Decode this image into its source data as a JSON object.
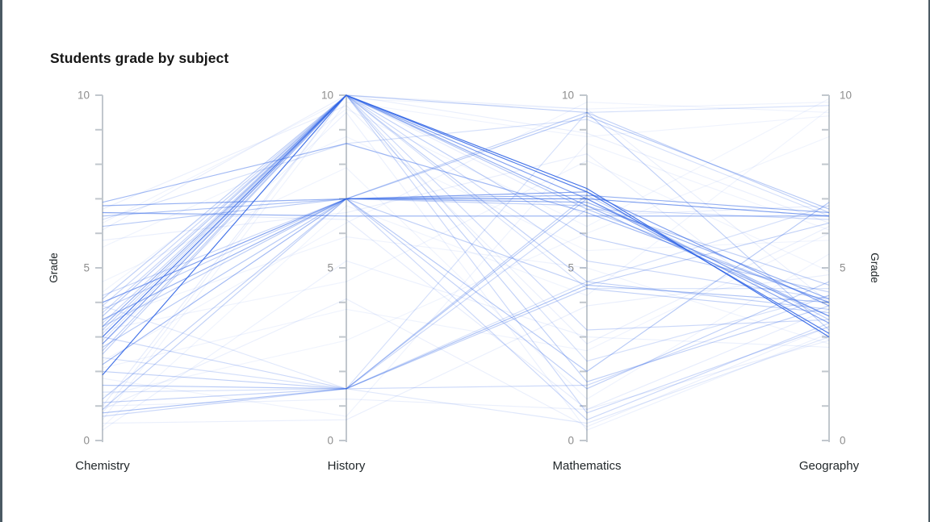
{
  "title": "Students grade by subject",
  "chart_data": {
    "type": "parallel_coordinates",
    "title": "Students grade by subject",
    "axes": [
      "Chemistry",
      "History",
      "Mathematics",
      "Geography"
    ],
    "value_axis_label": "Grade",
    "value_range": [
      0,
      10
    ],
    "labeled_ticks": [
      0,
      5,
      10
    ],
    "minor_tick_step": 1,
    "grid": false,
    "legend": "none",
    "colors": {
      "line": "#2e63e6",
      "axis": "#c1c7cd",
      "tick_label": "#8d8d8d",
      "dimension_label": "#21272a",
      "value_axis_label": "#21272a",
      "title": "#161616",
      "window_edge": "#4b5a63",
      "background": "#ffffff"
    },
    "students": [
      {
        "g": [
          3.0,
          10,
          7.2,
          3.1
        ],
        "o": 0.85
      },
      {
        "g": [
          2.8,
          10,
          7.0,
          3.4
        ],
        "o": 0.6
      },
      {
        "g": [
          3.3,
          10,
          6.8,
          3.6
        ],
        "o": 0.5
      },
      {
        "g": [
          3.6,
          10,
          6.7,
          4.0
        ],
        "o": 0.35
      },
      {
        "g": [
          2.5,
          10,
          5.9,
          4.3
        ],
        "o": 0.3
      },
      {
        "g": [
          3.9,
          10,
          5.2,
          4.1
        ],
        "o": 0.25
      },
      {
        "g": [
          3.2,
          10,
          4.6,
          3.8
        ],
        "o": 0.3
      },
      {
        "g": [
          2.9,
          10,
          4.4,
          4.4
        ],
        "o": 0.2
      },
      {
        "g": [
          3.4,
          10,
          3.2,
          3.5
        ],
        "o": 0.25
      },
      {
        "g": [
          3.1,
          10,
          2.3,
          4.2
        ],
        "o": 0.2
      },
      {
        "g": [
          2.6,
          10,
          1.7,
          3.9
        ],
        "o": 0.3
      },
      {
        "g": [
          3.7,
          10,
          0.8,
          3.3
        ],
        "o": 0.25
      },
      {
        "g": [
          4.1,
          10,
          9.5,
          6.6
        ],
        "o": 0.3
      },
      {
        "g": [
          1.9,
          10,
          7.3,
          3.0
        ],
        "o": 0.9
      },
      {
        "g": [
          1.0,
          10,
          6.5,
          6.8
        ],
        "o": 0.12
      },
      {
        "g": [
          0.8,
          10,
          9.6,
          4.0
        ],
        "o": 0.1
      },
      {
        "g": [
          6.8,
          7,
          7.1,
          6.6
        ],
        "o": 0.5
      },
      {
        "g": [
          6.5,
          7,
          7.0,
          6.5
        ],
        "o": 0.4
      },
      {
        "g": [
          4.0,
          7,
          7.2,
          3.9
        ],
        "o": 0.6
      },
      {
        "g": [
          3.5,
          7,
          6.9,
          4.1
        ],
        "o": 0.5
      },
      {
        "g": [
          2.2,
          7,
          7.0,
          3.6
        ],
        "o": 0.45
      },
      {
        "g": [
          1.2,
          7,
          6.8,
          4.5
        ],
        "o": 0.3
      },
      {
        "g": [
          3.8,
          7,
          4.5,
          6.3
        ],
        "o": 0.3
      },
      {
        "g": [
          2.7,
          7,
          2.0,
          6.9
        ],
        "o": 0.35
      },
      {
        "g": [
          3.3,
          7,
          1.5,
          4.6
        ],
        "o": 0.3
      },
      {
        "g": [
          4.2,
          7,
          0.6,
          3.4
        ],
        "o": 0.25
      },
      {
        "g": [
          6.2,
          7,
          9.4,
          6.7
        ],
        "o": 0.35
      },
      {
        "g": [
          0.9,
          7,
          9.5,
          3.2
        ],
        "o": 0.3
      },
      {
        "g": [
          6.6,
          6.5,
          6.5,
          6.5
        ],
        "o": 0.5
      },
      {
        "g": [
          0.8,
          1.5,
          4.5,
          4.0
        ],
        "o": 0.4
      },
      {
        "g": [
          1.1,
          1.5,
          4.4,
          3.7
        ],
        "o": 0.3
      },
      {
        "g": [
          1.6,
          1.5,
          7.0,
          6.5
        ],
        "o": 0.35
      },
      {
        "g": [
          2.0,
          1.5,
          7.1,
          3.5
        ],
        "o": 0.3
      },
      {
        "g": [
          2.4,
          1.5,
          9.5,
          9.7
        ],
        "o": 0.2
      },
      {
        "g": [
          3.0,
          1.5,
          1.6,
          4.2
        ],
        "o": 0.25
      },
      {
        "g": [
          3.9,
          1.5,
          0.5,
          3.0
        ],
        "o": 0.15
      },
      {
        "g": [
          0.7,
          1.5,
          6.7,
          6.4
        ],
        "o": 0.25
      },
      {
        "g": [
          1.4,
          1.5,
          4.6,
          6.8
        ],
        "o": 0.2
      },
      {
        "g": [
          6.9,
          8.6,
          6.6,
          4.0
        ],
        "o": 0.45
      },
      {
        "g": [
          6.4,
          8.6,
          9.3,
          6.5
        ],
        "o": 0.2
      },
      {
        "g": [
          6.3,
          9.9,
          9.6,
          9.8
        ],
        "o": 0.08
      },
      {
        "g": [
          0.6,
          9.8,
          8.8,
          9.4
        ],
        "o": 0.08
      },
      {
        "g": [
          6.7,
          9.7,
          2.8,
          6.2
        ],
        "o": 0.1
      },
      {
        "g": [
          5.8,
          6.6,
          8.3,
          2.9
        ],
        "o": 0.1
      },
      {
        "g": [
          6.6,
          6.4,
          0.9,
          3.8
        ],
        "o": 0.12
      },
      {
        "g": [
          0.5,
          0.6,
          3.9,
          4.8
        ],
        "o": 0.1
      },
      {
        "g": [
          1.8,
          0.7,
          8.6,
          6.1
        ],
        "o": 0.08
      },
      {
        "g": [
          2.3,
          6.3,
          9.8,
          9.5
        ],
        "o": 0.08
      },
      {
        "g": [
          4.3,
          9.6,
          6.2,
          9.9
        ],
        "o": 0.07
      },
      {
        "g": [
          0.9,
          4.1,
          0.4,
          3.3
        ],
        "o": 0.1
      },
      {
        "g": [
          2.1,
          3.8,
          2.6,
          6.0
        ],
        "o": 0.08
      },
      {
        "g": [
          3.5,
          5.9,
          5.0,
          2.8
        ],
        "o": 0.08
      },
      {
        "g": [
          6.1,
          10,
          8.9,
          6.3
        ],
        "o": 0.1
      },
      {
        "g": [
          0.4,
          6.8,
          4.2,
          9.6
        ],
        "o": 0.07
      },
      {
        "g": [
          2.8,
          9.5,
          0.3,
          3.1
        ],
        "o": 0.09
      },
      {
        "g": [
          1.3,
          2.9,
          6.0,
          8.8
        ],
        "o": 0.07
      },
      {
        "g": [
          3.2,
          4.6,
          8.1,
          4.9
        ],
        "o": 0.08
      },
      {
        "g": [
          5.6,
          8.8,
          5.5,
          5.8
        ],
        "o": 0.07
      },
      {
        "g": [
          0.3,
          5.2,
          3.0,
          2.7
        ],
        "o": 0.09
      },
      {
        "g": [
          4.6,
          7.9,
          1.2,
          5.4
        ],
        "o": 0.08
      },
      {
        "g": [
          1.0,
          1.2,
          0.9,
          2.9
        ],
        "o": 0.1
      }
    ]
  }
}
